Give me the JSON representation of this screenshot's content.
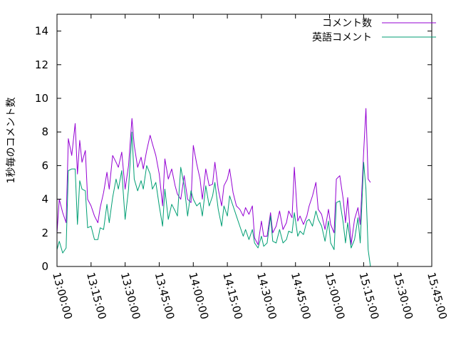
{
  "chart_data": {
    "type": "line",
    "title": "",
    "ylabel": "1秒毎のコメント数",
    "xlabel": "",
    "ylim": [
      0,
      15
    ],
    "xlim": [
      "13:00:00",
      "15:45:00"
    ],
    "yticks": [
      "0",
      "2",
      "4",
      "6",
      "8",
      "10",
      "12",
      "14"
    ],
    "xticks": [
      "13:00:00",
      "13:15:00",
      "13:30:00",
      "13:45:00",
      "14:00:00",
      "14:15:00",
      "14:30:00",
      "14:45:00",
      "15:00:00",
      "15:15:00",
      "15:30:00",
      "15:45:00"
    ],
    "grid": false,
    "legend_position": "top-right",
    "series": [
      {
        "name": "コメント数",
        "color": "#9400d3",
        "points": [
          [
            "13:00:00",
            2.0
          ],
          [
            "13:01:00",
            4.0
          ],
          [
            "13:02:30",
            3.2
          ],
          [
            "13:04:00",
            2.6
          ],
          [
            "13:05:00",
            7.6
          ],
          [
            "13:06:30",
            6.6
          ],
          [
            "13:08:00",
            8.5
          ],
          [
            "13:09:00",
            5.5
          ],
          [
            "13:10:00",
            7.5
          ],
          [
            "13:11:00",
            6.2
          ],
          [
            "13:12:30",
            6.9
          ],
          [
            "13:13:30",
            4.0
          ],
          [
            "13:15:00",
            3.6
          ],
          [
            "13:16:30",
            3.0
          ],
          [
            "13:18:00",
            2.6
          ],
          [
            "13:19:00",
            3.5
          ],
          [
            "13:20:30",
            4.4
          ],
          [
            "13:22:00",
            5.6
          ],
          [
            "13:23:00",
            4.6
          ],
          [
            "13:24:30",
            6.6
          ],
          [
            "13:26:00",
            6.2
          ],
          [
            "13:27:00",
            5.9
          ],
          [
            "13:28:30",
            6.8
          ],
          [
            "13:30:00",
            4.6
          ],
          [
            "13:31:30",
            6.0
          ],
          [
            "13:33:00",
            8.8
          ],
          [
            "13:34:00",
            7.2
          ],
          [
            "13:35:30",
            5.9
          ],
          [
            "13:37:00",
            6.5
          ],
          [
            "13:38:00",
            5.8
          ],
          [
            "13:39:30",
            6.9
          ],
          [
            "13:41:00",
            7.8
          ],
          [
            "13:42:00",
            7.3
          ],
          [
            "13:43:30",
            6.6
          ],
          [
            "13:45:00",
            5.5
          ],
          [
            "13:46:30",
            3.6
          ],
          [
            "13:47:30",
            6.4
          ],
          [
            "13:49:00",
            5.2
          ],
          [
            "13:50:30",
            5.8
          ],
          [
            "13:52:00",
            4.8
          ],
          [
            "13:53:00",
            4.3
          ],
          [
            "13:54:30",
            4.0
          ],
          [
            "13:56:00",
            5.4
          ],
          [
            "13:57:30",
            4.0
          ],
          [
            "13:59:00",
            3.8
          ],
          [
            "14:00:00",
            7.2
          ],
          [
            "14:01:30",
            6.1
          ],
          [
            "14:03:00",
            5.2
          ],
          [
            "14:04:00",
            4.0
          ],
          [
            "14:05:30",
            5.8
          ],
          [
            "14:07:00",
            4.8
          ],
          [
            "14:08:30",
            4.9
          ],
          [
            "14:09:30",
            6.2
          ],
          [
            "14:11:00",
            4.6
          ],
          [
            "14:12:30",
            3.6
          ],
          [
            "14:13:30",
            4.8
          ],
          [
            "14:15:00",
            5.2
          ],
          [
            "14:16:00",
            5.8
          ],
          [
            "14:17:30",
            4.4
          ],
          [
            "14:19:00",
            3.6
          ],
          [
            "14:20:30",
            3.4
          ],
          [
            "14:22:00",
            3.0
          ],
          [
            "14:23:00",
            3.5
          ],
          [
            "14:24:30",
            3.1
          ],
          [
            "14:26:00",
            3.6
          ],
          [
            "14:27:00",
            1.7
          ],
          [
            "14:28:30",
            1.3
          ],
          [
            "14:30:00",
            2.7
          ],
          [
            "14:31:00",
            1.8
          ],
          [
            "14:32:30",
            1.8
          ],
          [
            "14:34:00",
            3.2
          ],
          [
            "14:35:00",
            2.0
          ],
          [
            "14:36:30",
            2.4
          ],
          [
            "14:38:00",
            3.3
          ],
          [
            "14:39:30",
            2.2
          ],
          [
            "14:41:00",
            2.6
          ],
          [
            "14:42:00",
            3.3
          ],
          [
            "14:43:30",
            2.9
          ],
          [
            "14:44:30",
            5.9
          ],
          [
            "14:46:00",
            2.7
          ],
          [
            "14:47:00",
            3.0
          ],
          [
            "14:48:30",
            2.5
          ],
          [
            "14:50:00",
            3.0
          ],
          [
            "14:51:00",
            3.6
          ],
          [
            "14:52:30",
            4.2
          ],
          [
            "14:54:00",
            5.0
          ],
          [
            "14:55:00",
            3.4
          ],
          [
            "14:56:30",
            3.1
          ],
          [
            "14:58:00",
            2.2
          ],
          [
            "14:59:30",
            3.4
          ],
          [
            "15:00:30",
            2.5
          ],
          [
            "15:02:00",
            2.0
          ],
          [
            "15:03:00",
            5.2
          ],
          [
            "15:04:30",
            5.4
          ],
          [
            "15:06:00",
            4.0
          ],
          [
            "15:07:00",
            2.6
          ],
          [
            "15:08:00",
            4.1
          ],
          [
            "15:09:30",
            1.3
          ],
          [
            "15:11:00",
            2.8
          ],
          [
            "15:12:30",
            3.5
          ],
          [
            "15:13:30",
            2.5
          ],
          [
            "15:15:00",
            6.8
          ],
          [
            "15:16:00",
            9.4
          ],
          [
            "15:17:00",
            5.2
          ],
          [
            "15:18:00",
            5.0
          ]
        ]
      },
      {
        "name": "英語コメント",
        "color": "#009e73",
        "points": [
          [
            "13:00:00",
            1.0
          ],
          [
            "13:01:00",
            1.5
          ],
          [
            "13:02:30",
            0.8
          ],
          [
            "13:04:00",
            1.1
          ],
          [
            "13:05:00",
            5.7
          ],
          [
            "13:06:30",
            5.8
          ],
          [
            "13:08:00",
            5.8
          ],
          [
            "13:09:00",
            2.5
          ],
          [
            "13:10:00",
            5.1
          ],
          [
            "13:11:00",
            4.6
          ],
          [
            "13:12:30",
            4.5
          ],
          [
            "13:13:30",
            2.3
          ],
          [
            "13:15:00",
            2.4
          ],
          [
            "13:16:30",
            1.6
          ],
          [
            "13:18:00",
            1.6
          ],
          [
            "13:19:00",
            2.3
          ],
          [
            "13:20:30",
            2.2
          ],
          [
            "13:22:00",
            3.7
          ],
          [
            "13:23:00",
            2.6
          ],
          [
            "13:24:30",
            4.1
          ],
          [
            "13:26:00",
            5.2
          ],
          [
            "13:27:00",
            4.6
          ],
          [
            "13:28:30",
            5.7
          ],
          [
            "13:30:00",
            2.8
          ],
          [
            "13:31:30",
            4.6
          ],
          [
            "13:33:00",
            8.0
          ],
          [
            "13:34:00",
            5.2
          ],
          [
            "13:35:30",
            4.5
          ],
          [
            "13:37:00",
            5.1
          ],
          [
            "13:38:00",
            4.6
          ],
          [
            "13:39:30",
            6.0
          ],
          [
            "13:41:00",
            5.5
          ],
          [
            "13:42:00",
            4.6
          ],
          [
            "13:43:30",
            5.0
          ],
          [
            "13:45:00",
            3.6
          ],
          [
            "13:46:30",
            2.4
          ],
          [
            "13:47:30",
            4.6
          ],
          [
            "13:49:00",
            2.8
          ],
          [
            "13:50:30",
            3.7
          ],
          [
            "13:52:00",
            3.3
          ],
          [
            "13:53:00",
            3.0
          ],
          [
            "13:54:30",
            5.9
          ],
          [
            "13:56:00",
            4.8
          ],
          [
            "13:57:30",
            3.0
          ],
          [
            "13:59:00",
            4.5
          ],
          [
            "14:00:00",
            4.0
          ],
          [
            "14:01:30",
            3.6
          ],
          [
            "14:03:00",
            3.8
          ],
          [
            "14:04:00",
            3.0
          ],
          [
            "14:05:30",
            4.8
          ],
          [
            "14:07:00",
            3.6
          ],
          [
            "14:08:30",
            4.2
          ],
          [
            "14:09:30",
            5.0
          ],
          [
            "14:11:00",
            3.4
          ],
          [
            "14:12:30",
            2.4
          ],
          [
            "14:13:30",
            3.6
          ],
          [
            "14:15:00",
            3.0
          ],
          [
            "14:16:00",
            4.2
          ],
          [
            "14:17:30",
            3.6
          ],
          [
            "14:19:00",
            3.0
          ],
          [
            "14:20:30",
            2.4
          ],
          [
            "14:22:00",
            1.8
          ],
          [
            "14:23:00",
            2.2
          ],
          [
            "14:24:30",
            1.6
          ],
          [
            "14:26:00",
            2.2
          ],
          [
            "14:27:00",
            1.4
          ],
          [
            "14:28:30",
            1.1
          ],
          [
            "14:30:00",
            1.8
          ],
          [
            "14:31:00",
            1.2
          ],
          [
            "14:32:30",
            1.4
          ],
          [
            "14:34:00",
            3.0
          ],
          [
            "14:35:00",
            1.5
          ],
          [
            "14:36:30",
            1.4
          ],
          [
            "14:38:00",
            2.2
          ],
          [
            "14:39:30",
            1.4
          ],
          [
            "14:41:00",
            1.6
          ],
          [
            "14:42:00",
            2.1
          ],
          [
            "14:43:30",
            2.0
          ],
          [
            "14:44:30",
            3.2
          ],
          [
            "14:46:00",
            1.8
          ],
          [
            "14:47:00",
            2.1
          ],
          [
            "14:48:30",
            1.9
          ],
          [
            "14:50:00",
            2.7
          ],
          [
            "14:51:00",
            2.8
          ],
          [
            "14:52:30",
            2.4
          ],
          [
            "14:54:00",
            3.3
          ],
          [
            "14:55:00",
            2.8
          ],
          [
            "14:56:30",
            2.4
          ],
          [
            "14:58:00",
            1.5
          ],
          [
            "14:59:30",
            2.7
          ],
          [
            "15:00:30",
            1.4
          ],
          [
            "15:02:00",
            1.0
          ],
          [
            "15:03:00",
            3.8
          ],
          [
            "15:04:30",
            3.9
          ],
          [
            "15:06:00",
            2.6
          ],
          [
            "15:07:00",
            1.4
          ],
          [
            "15:08:00",
            2.6
          ],
          [
            "15:09:30",
            1.1
          ],
          [
            "15:11:00",
            1.6
          ],
          [
            "15:12:30",
            2.9
          ],
          [
            "15:13:30",
            1.4
          ],
          [
            "15:15:00",
            6.2
          ],
          [
            "15:16:00",
            4.6
          ],
          [
            "15:17:00",
            1.0
          ],
          [
            "15:18:00",
            0.0
          ]
        ]
      }
    ]
  }
}
